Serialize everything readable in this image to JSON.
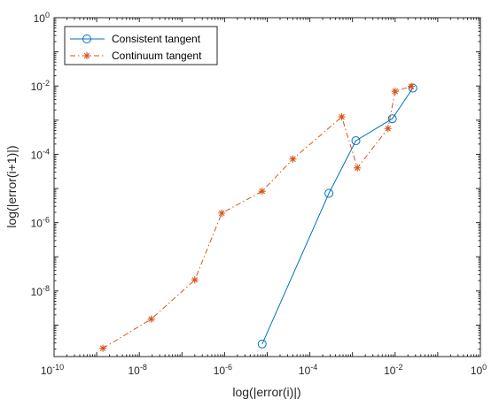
{
  "chart_data": {
    "type": "line",
    "xlabel": "log(|error(i)|)",
    "ylabel": "log(|error(i+1)|)",
    "xscale": "log",
    "yscale": "log",
    "xlim": [
      1e-10,
      1
    ],
    "ylim": [
      1.2e-10,
      1
    ],
    "grid": false,
    "legend_position": "top-left",
    "x_ticks": [
      {
        "base": "10",
        "exp": "-10",
        "value": 1e-10
      },
      {
        "base": "10",
        "exp": "-8",
        "value": 1e-08
      },
      {
        "base": "10",
        "exp": "-6",
        "value": 1e-06
      },
      {
        "base": "10",
        "exp": "-4",
        "value": 0.0001
      },
      {
        "base": "10",
        "exp": "-2",
        "value": 0.01
      },
      {
        "base": "10",
        "exp": "0",
        "value": 1
      }
    ],
    "y_ticks": [
      {
        "base": "10",
        "exp": "-8",
        "value": 1e-08
      },
      {
        "base": "10",
        "exp": "-6",
        "value": 1e-06
      },
      {
        "base": "10",
        "exp": "-4",
        "value": 0.0001
      },
      {
        "base": "10",
        "exp": "-2",
        "value": 0.01
      },
      {
        "base": "10",
        "exp": "0",
        "value": 1
      }
    ],
    "series": [
      {
        "name": "Consistent tangent",
        "color": "#0072BD",
        "line_style": "solid",
        "marker": "circle",
        "x": [
          7.6e-06,
          0.00028,
          0.0012,
          0.0086,
          0.026
        ],
        "y": [
          2.8e-10,
          7.2e-06,
          0.00025,
          0.0011,
          0.0087
        ]
      },
      {
        "name": "Continuum tangent",
        "color": "#D95319",
        "line_style": "dashdot",
        "marker": "asterisk",
        "x": [
          1.4e-09,
          1.9e-08,
          2e-07,
          8.6e-07,
          7.6e-06,
          4e-05,
          0.00056,
          0.0013,
          0.0068,
          0.01,
          0.024
        ],
        "y": [
          2.1e-10,
          1.5e-09,
          2.1e-08,
          1.9e-06,
          8.3e-06,
          7.3e-05,
          0.00125,
          4e-05,
          0.00057,
          0.007,
          0.0098
        ]
      }
    ]
  }
}
